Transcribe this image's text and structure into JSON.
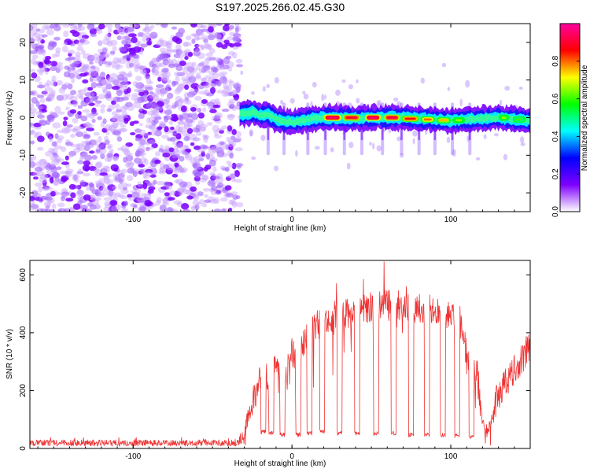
{
  "title": "S197.2025.266.02.45.G30",
  "chart_data": [
    {
      "type": "heatmap",
      "name": "spectrogram",
      "xlabel": "Height of straight line (km)",
      "ylabel": "Frequency (Hz)",
      "xlim": [
        -165,
        150
      ],
      "ylim": [
        -25,
        25
      ],
      "xticks": [
        -100,
        0,
        100
      ],
      "yticks": [
        -20,
        -10,
        0,
        10,
        20
      ],
      "colorbar": {
        "label": "Normalized spectral amplitude",
        "range": [
          0,
          1
        ],
        "ticks": [
          0.0,
          0.2,
          0.4,
          0.6,
          0.8
        ],
        "tick_labels": [
          "0.0",
          "0.2",
          "0.4",
          "0.6",
          "0.8"
        ],
        "colors": [
          "#ffffff",
          "#7f00ff",
          "#0000ff",
          "#00ffff",
          "#00ff00",
          "#ffff00",
          "#ff0000",
          "#ff00a0"
        ]
      },
      "noise_region_x": [
        -165,
        -33
      ],
      "signal_region_x": [
        -33,
        150
      ],
      "signal_trace": [
        {
          "x": -30,
          "freq": 1.0
        },
        {
          "x": -25,
          "freq": 1.5
        },
        {
          "x": -20,
          "freq": 0.5
        },
        {
          "x": -15,
          "freq": 1.0
        },
        {
          "x": -10,
          "freq": -0.5
        },
        {
          "x": -5,
          "freq": -1.0
        },
        {
          "x": 0,
          "freq": -1.2
        },
        {
          "x": 5,
          "freq": -0.8
        },
        {
          "x": 10,
          "freq": -0.5
        },
        {
          "x": 20,
          "freq": 0.0
        },
        {
          "x": 30,
          "freq": 0.0
        },
        {
          "x": 40,
          "freq": -0.2
        },
        {
          "x": 50,
          "freq": 0.0
        },
        {
          "x": 60,
          "freq": 0.0
        },
        {
          "x": 70,
          "freq": 0.0
        },
        {
          "x": 80,
          "freq": -0.3
        },
        {
          "x": 90,
          "freq": -0.5
        },
        {
          "x": 100,
          "freq": -0.8
        },
        {
          "x": 110,
          "freq": -0.5
        },
        {
          "x": 120,
          "freq": -0.2
        },
        {
          "x": 130,
          "freq": 0.0
        },
        {
          "x": 140,
          "freq": -0.5
        },
        {
          "x": 148,
          "freq": -0.8
        }
      ],
      "peak_segments": [
        {
          "x": [
            21,
            30
          ],
          "freq": 0.0,
          "amplitude": 0.95
        },
        {
          "x": [
            33,
            42
          ],
          "freq": 0.0,
          "amplitude": 0.9
        },
        {
          "x": [
            47,
            55
          ],
          "freq": 0.0,
          "amplitude": 0.95
        },
        {
          "x": [
            59,
            67
          ],
          "freq": 0.0,
          "amplitude": 0.92
        },
        {
          "x": [
            70,
            79
          ],
          "freq": -0.3,
          "amplitude": 0.85
        },
        {
          "x": [
            82,
            89
          ],
          "freq": -0.5,
          "amplitude": 0.8
        },
        {
          "x": [
            92,
            99
          ],
          "freq": -0.7,
          "amplitude": 0.75
        },
        {
          "x": [
            102,
            108
          ],
          "freq": -0.7,
          "amplitude": 0.65
        },
        {
          "x": [
            131,
            136
          ],
          "freq": 0.0,
          "amplitude": 0.65
        },
        {
          "x": [
            140,
            146
          ],
          "freq": -0.5,
          "amplitude": 0.6
        }
      ],
      "striation_x": [
        -15,
        -5,
        10,
        21,
        33,
        44,
        57,
        69,
        80,
        90,
        101,
        112
      ]
    },
    {
      "type": "line",
      "name": "snr",
      "xlabel": "Height of straight line (km)",
      "ylabel": "SNR (10 * v/v)",
      "xlim": [
        -165,
        150
      ],
      "ylim": [
        0,
        650
      ],
      "xticks": [
        -100,
        0,
        100
      ],
      "yticks": [
        0,
        200,
        400,
        600
      ],
      "color": "#ee3333",
      "series": [
        {
          "name": "SNR",
          "x": [
            -165,
            -33,
            -22,
            -20,
            -17,
            -12,
            -8,
            -4,
            -1,
            3,
            8,
            13,
            16,
            22,
            28,
            35,
            45,
            55,
            65,
            75,
            85,
            95,
            102,
            107,
            109,
            112,
            117,
            120,
            123,
            130,
            140,
            150
          ],
          "values": [
            20,
            20,
            200,
            260,
            230,
            300,
            280,
            260,
            350,
            300,
            380,
            400,
            430,
            440,
            460,
            470,
            480,
            490,
            500,
            490,
            480,
            460,
            450,
            440,
            350,
            270,
            250,
            80,
            60,
            190,
            270,
            360
          ]
        }
      ],
      "dips": [
        {
          "x": -18,
          "value": 50
        },
        {
          "x": -13,
          "value": 45
        },
        {
          "x": -6,
          "value": 40
        },
        {
          "x": 4,
          "value": 40
        },
        {
          "x": 11,
          "value": 45
        },
        {
          "x": 19,
          "value": 50
        },
        {
          "x": 30,
          "value": 45
        },
        {
          "x": 41,
          "value": 45
        },
        {
          "x": 53,
          "value": 45
        },
        {
          "x": 64,
          "value": 45
        },
        {
          "x": 75,
          "value": 40
        },
        {
          "x": 85,
          "value": 40
        },
        {
          "x": 95,
          "value": 40
        },
        {
          "x": 104,
          "value": 35
        },
        {
          "x": 113,
          "value": 30
        }
      ],
      "spikes": [
        {
          "x": 13,
          "value": 455
        },
        {
          "x": 28,
          "value": 570
        },
        {
          "x": 45,
          "value": 585
        },
        {
          "x": 58,
          "value": 645
        },
        {
          "x": 72,
          "value": 560
        }
      ]
    }
  ]
}
